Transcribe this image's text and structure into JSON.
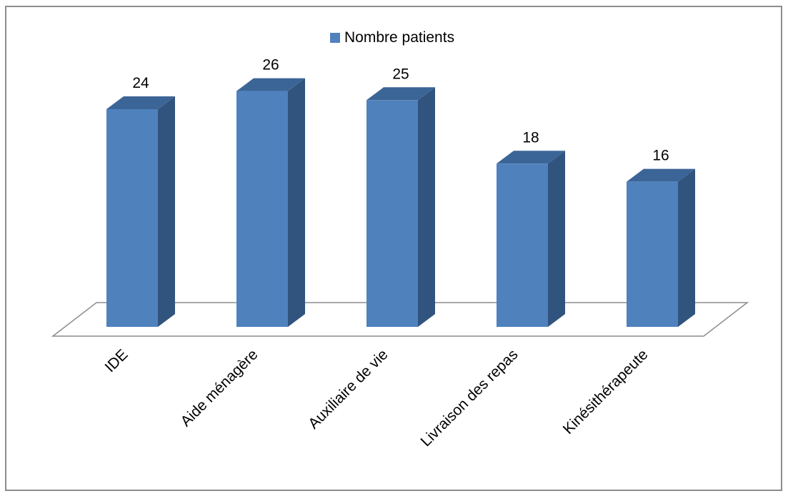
{
  "chart_data": {
    "type": "bar",
    "categories": [
      "IDE",
      "Aide ménagère",
      "Auxiliaire de vie",
      "Livraison des repas",
      "Kinésithérapeute"
    ],
    "series": [
      {
        "name": "Nombre patients",
        "values": [
          24,
          26,
          25,
          18,
          16
        ]
      }
    ],
    "data_labels": [
      "24",
      "26",
      "25",
      "18",
      "16"
    ],
    "title": "",
    "xlabel": "",
    "ylabel": "",
    "ylim": [
      0,
      26
    ],
    "grid": false,
    "legend": "top-center",
    "style": "3d-column"
  },
  "colors": {
    "bar_front": "#4f81bd",
    "bar_side": "#31547e",
    "bar_top": "#3c6597",
    "floor_stroke": "#8c8c8c",
    "frame_stroke": "#8c8c8c"
  }
}
